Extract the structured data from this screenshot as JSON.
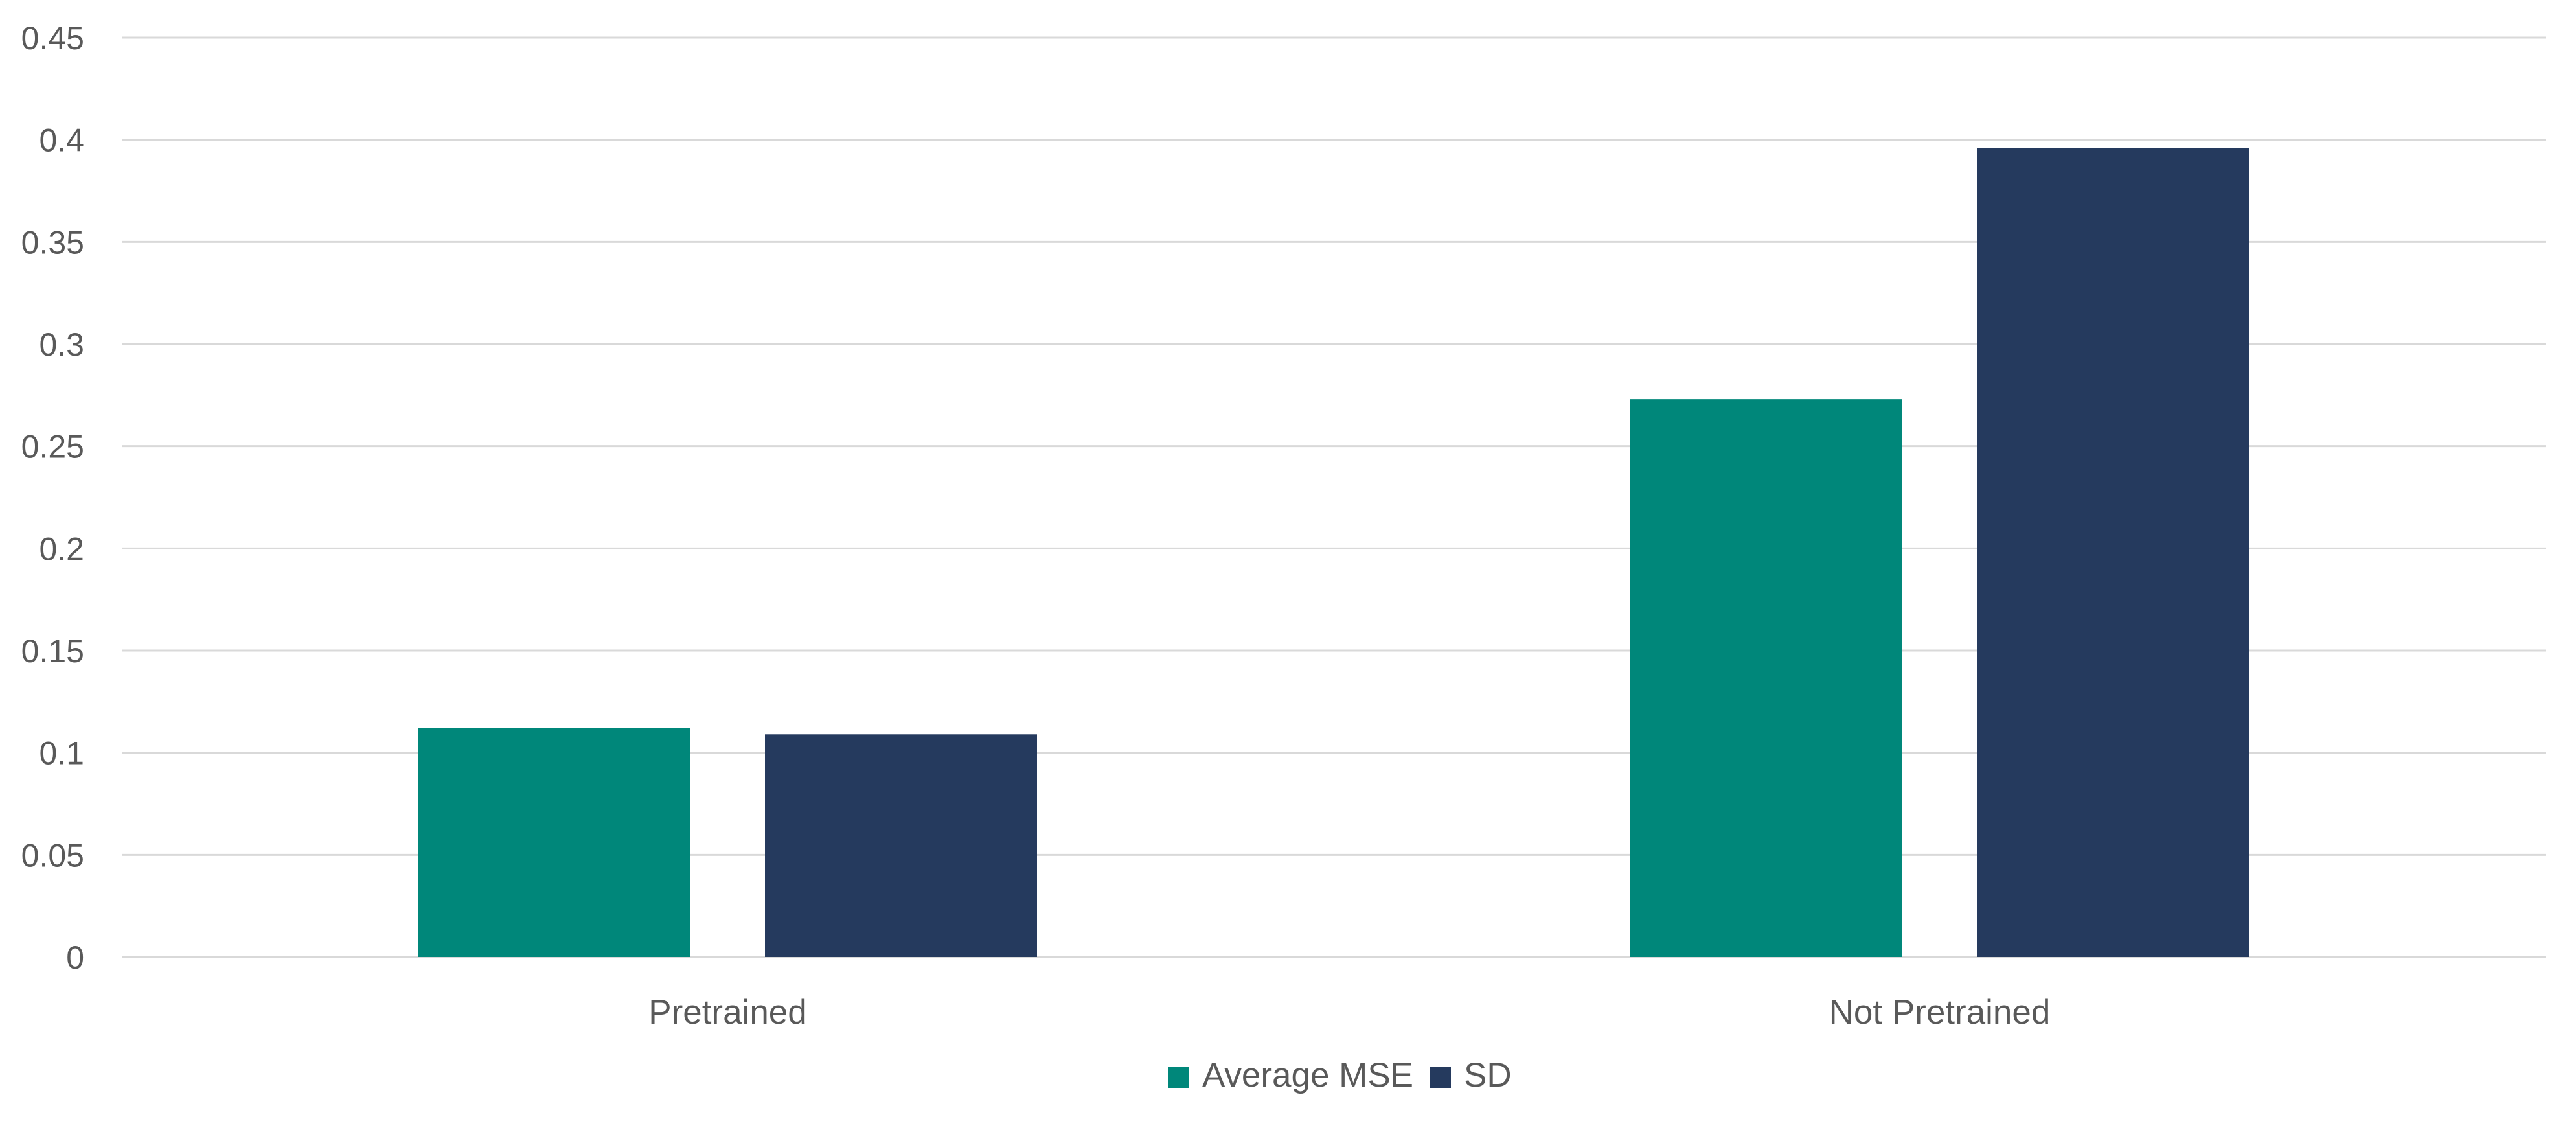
{
  "chart_data": {
    "type": "bar",
    "title": "",
    "xlabel": "",
    "ylabel": "",
    "categories": [
      "Pretrained",
      "Not Pretrained"
    ],
    "series": [
      {
        "name": "Average MSE",
        "color": "#00877a",
        "values": [
          0.112,
          0.273
        ]
      },
      {
        "name": "SD",
        "color": "#253a5e",
        "values": [
          0.109,
          0.396
        ]
      }
    ],
    "ylim": [
      0,
      0.45
    ],
    "yticks": [
      "0",
      "0.05",
      "0.1",
      "0.15",
      "0.2",
      "0.25",
      "0.3",
      "0.35",
      "0.4",
      "0.45"
    ],
    "grid": true,
    "legend_position": "bottom"
  }
}
